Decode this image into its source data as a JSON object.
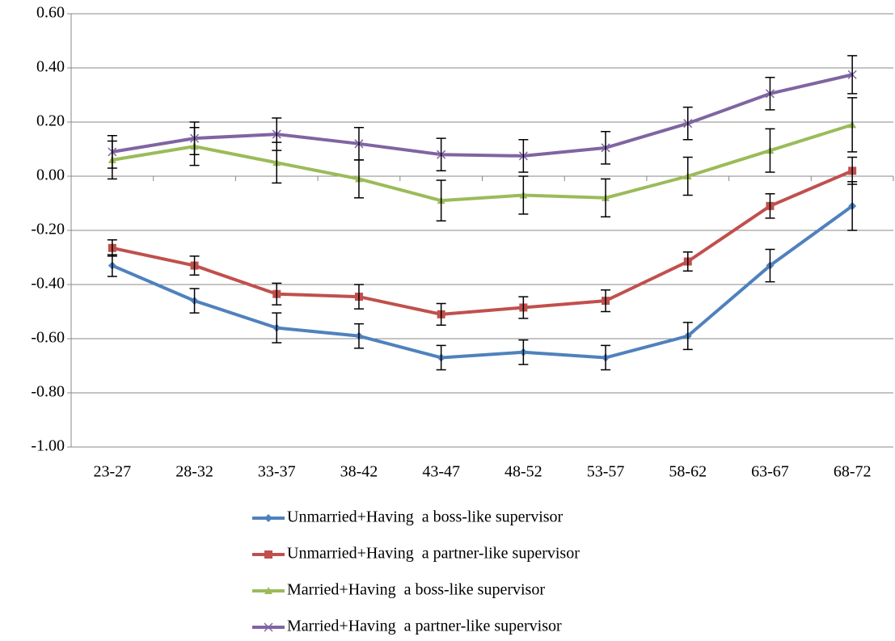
{
  "chart_data": {
    "type": "line",
    "categories": [
      "23-27",
      "28-32",
      "33-37",
      "38-42",
      "43-47",
      "48-52",
      "53-57",
      "58-62",
      "63-67",
      "68-72"
    ],
    "series": [
      {
        "name": "Unmarried+Having  a boss-like supervisor",
        "color": "#4f81bd",
        "marker": "diamond",
        "values": [
          -0.33,
          -0.46,
          -0.56,
          -0.59,
          -0.67,
          -0.65,
          -0.67,
          -0.59,
          -0.33,
          -0.11
        ],
        "errors": [
          0.04,
          0.045,
          0.055,
          0.045,
          0.045,
          0.045,
          0.045,
          0.05,
          0.06,
          0.09
        ]
      },
      {
        "name": "Unmarried+Having  a partner-like supervisor",
        "color": "#c0504d",
        "marker": "square",
        "values": [
          -0.265,
          -0.33,
          -0.435,
          -0.445,
          -0.51,
          -0.485,
          -0.46,
          -0.315,
          -0.11,
          0.02
        ],
        "errors": [
          0.03,
          0.035,
          0.04,
          0.045,
          0.04,
          0.04,
          0.04,
          0.035,
          0.045,
          0.05
        ]
      },
      {
        "name": "Married+Having  a boss-like supervisor",
        "color": "#9bbb59",
        "marker": "triangle",
        "values": [
          0.06,
          0.11,
          0.05,
          -0.01,
          -0.09,
          -0.07,
          -0.08,
          0.0,
          0.095,
          0.19
        ],
        "errors": [
          0.07,
          0.07,
          0.075,
          0.07,
          0.075,
          0.07,
          0.07,
          0.07,
          0.08,
          0.1
        ]
      },
      {
        "name": "Married+Having  a partner-like supervisor",
        "color": "#8064a2",
        "marker": "x",
        "values": [
          0.09,
          0.14,
          0.155,
          0.12,
          0.08,
          0.075,
          0.105,
          0.195,
          0.305,
          0.375
        ],
        "errors": [
          0.06,
          0.06,
          0.06,
          0.06,
          0.06,
          0.06,
          0.06,
          0.06,
          0.06,
          0.07
        ]
      }
    ],
    "ylim": [
      -1.0,
      0.6
    ],
    "yticks": [
      {
        "value": -1.0,
        "label": "-1.00"
      },
      {
        "value": -0.8,
        "label": "-0.80"
      },
      {
        "value": -0.6,
        "label": "-0.60"
      },
      {
        "value": -0.4,
        "label": "-0.40"
      },
      {
        "value": -0.2,
        "label": "-0.20"
      },
      {
        "value": 0,
        "label": "0.00"
      },
      {
        "value": 0.2,
        "label": "0.20"
      },
      {
        "value": 0.4,
        "label": "0.40"
      },
      {
        "value": 0.6,
        "label": "0.60"
      }
    ],
    "grid": true
  }
}
